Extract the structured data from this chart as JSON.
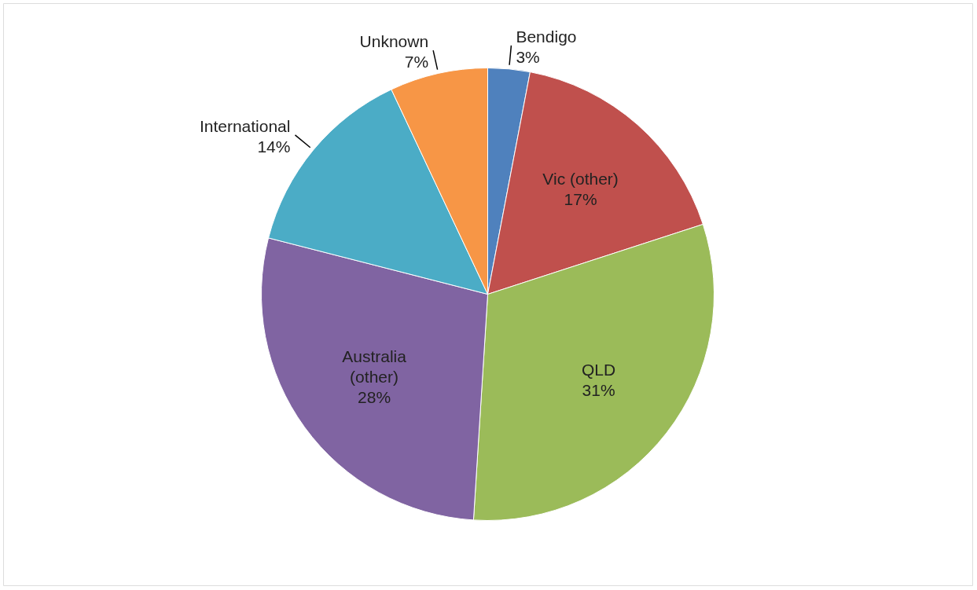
{
  "chart_data": {
    "type": "pie",
    "categories": [
      "Bendigo",
      "Vic (other)",
      "QLD",
      "Australia (other)",
      "International",
      "Unknown"
    ],
    "values": [
      3,
      17,
      31,
      28,
      14,
      7
    ],
    "colors": [
      "#4f81bd",
      "#c0504d",
      "#9bbb59",
      "#8064a2",
      "#4bacc6",
      "#f79646"
    ],
    "value_labels": [
      "3%",
      "17%",
      "31%",
      "28%",
      "14%",
      "7%"
    ],
    "legend": false
  }
}
